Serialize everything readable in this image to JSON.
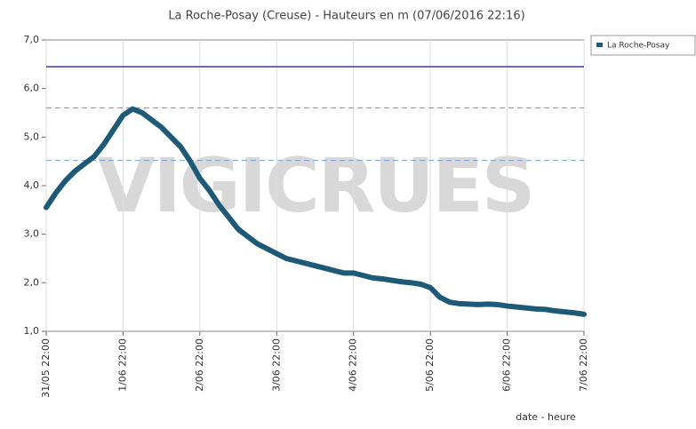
{
  "chart_data": {
    "type": "line",
    "title": "La Roche-Posay (Creuse) - Hauteurs en m (07/06/2016 22:16)",
    "x_label": "date - heure",
    "watermark": "VIGICRUES",
    "x": [
      0,
      3,
      6,
      9,
      12,
      15,
      18,
      21,
      24,
      27,
      30,
      33,
      36,
      39,
      42,
      45,
      48,
      51,
      54,
      57,
      60,
      63,
      66,
      69,
      72,
      75,
      78,
      81,
      84,
      87,
      90,
      93,
      96,
      99,
      102,
      105,
      108,
      111,
      114,
      117,
      120,
      123,
      126,
      129,
      132,
      135,
      138,
      141,
      144,
      147,
      150,
      153,
      156,
      159,
      162,
      165,
      168
    ],
    "series": [
      {
        "name": "La Roche-Posay",
        "color": "#1d5a78",
        "values": [
          3.55,
          3.85,
          4.1,
          4.3,
          4.45,
          4.6,
          4.85,
          5.15,
          5.45,
          5.58,
          5.5,
          5.35,
          5.2,
          5.0,
          4.8,
          4.5,
          4.15,
          3.9,
          3.6,
          3.35,
          3.1,
          2.95,
          2.8,
          2.7,
          2.6,
          2.5,
          2.45,
          2.4,
          2.35,
          2.3,
          2.25,
          2.2,
          2.2,
          2.15,
          2.1,
          2.08,
          2.05,
          2.02,
          2.0,
          1.97,
          1.9,
          1.7,
          1.6,
          1.57,
          1.56,
          1.55,
          1.56,
          1.55,
          1.52,
          1.5,
          1.48,
          1.46,
          1.45,
          1.42,
          1.4,
          1.38,
          1.35
        ]
      }
    ],
    "xlim": [
      0,
      168
    ],
    "xticks": [
      {
        "value": 0,
        "label": "31/05 22:00"
      },
      {
        "value": 24,
        "label": "1/06 22:00"
      },
      {
        "value": 48,
        "label": "2/06 22:00"
      },
      {
        "value": 72,
        "label": "3/06 22:00"
      },
      {
        "value": 96,
        "label": "4/06 22:00"
      },
      {
        "value": 120,
        "label": "5/06 22:00"
      },
      {
        "value": 144,
        "label": "6/06 22:00"
      },
      {
        "value": 168,
        "label": "7/06 22:00"
      }
    ],
    "ylim": [
      1,
      7
    ],
    "yticks": [
      {
        "value": 1,
        "label": "1,0"
      },
      {
        "value": 2,
        "label": "2,0"
      },
      {
        "value": 3,
        "label": "3,0"
      },
      {
        "value": 4,
        "label": "4,0"
      },
      {
        "value": 5,
        "label": "5,0"
      },
      {
        "value": 6,
        "label": "6,0"
      },
      {
        "value": 7,
        "label": "7,0"
      }
    ],
    "reference_lines": [
      {
        "value": 6.45,
        "style": "solid",
        "color": "#3b3b9a"
      },
      {
        "value": 5.6,
        "style": "dashed",
        "color": "#8c8cd8"
      },
      {
        "value": 4.52,
        "style": "dashed",
        "color": "#7aa0d0"
      }
    ],
    "grid": true,
    "legend": "right"
  }
}
